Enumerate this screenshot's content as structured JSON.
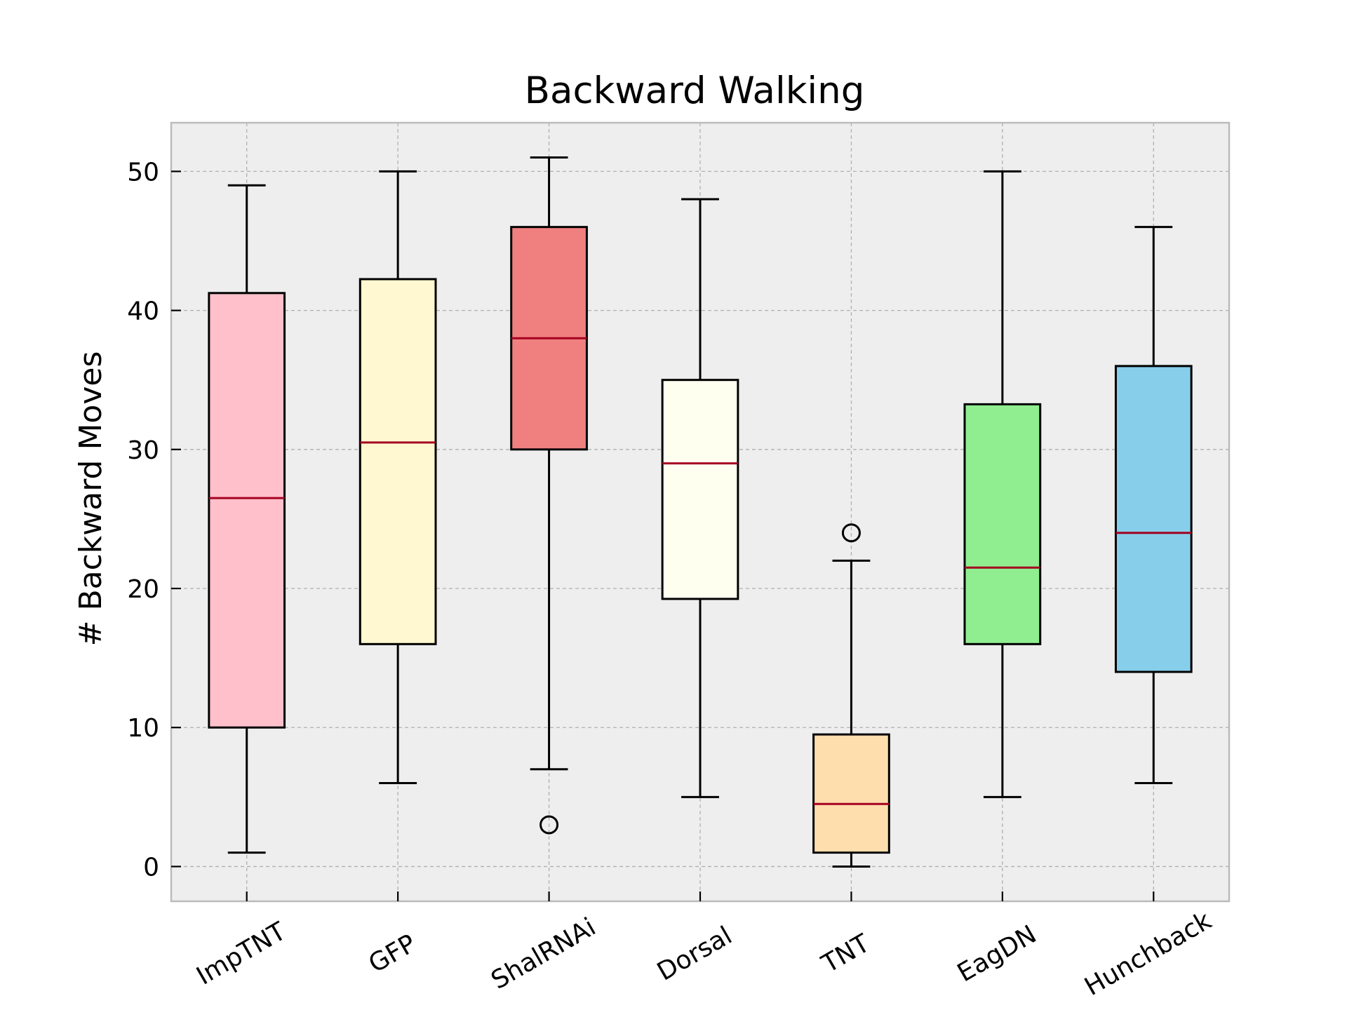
{
  "chart_data": {
    "type": "box",
    "title": "Backward Walking",
    "xlabel": "",
    "ylabel": "# Backward Moves",
    "ylim": [
      -2.5,
      53.5
    ],
    "yticks": [
      "0",
      "10",
      "20",
      "30",
      "40",
      "50"
    ],
    "grid": true,
    "categories": [
      "ImpTNT",
      "GFP",
      "ShalRNAi",
      "Dorsal",
      "TNT",
      "EagDN",
      "Hunchback"
    ],
    "boxes": [
      {
        "name": "ImpTNT",
        "color": "#FFC0CB",
        "whisker_low": 1,
        "q1": 10,
        "median": 26.5,
        "q3": 41.25,
        "whisker_high": 49,
        "outliers": []
      },
      {
        "name": "GFP",
        "color": "#FFF8D0",
        "whisker_low": 6,
        "q1": 16,
        "median": 30.5,
        "q3": 42.25,
        "whisker_high": 50,
        "outliers": []
      },
      {
        "name": "ShalRNAi",
        "color": "#F08080",
        "whisker_low": 7,
        "q1": 30,
        "median": 38,
        "q3": 46,
        "whisker_high": 51,
        "outliers": [
          3
        ]
      },
      {
        "name": "Dorsal",
        "color": "#FFFFF0",
        "whisker_low": 5,
        "q1": 19.25,
        "median": 29,
        "q3": 35,
        "whisker_high": 48,
        "outliers": []
      },
      {
        "name": "TNT",
        "color": "#FFDEAD",
        "whisker_low": 0,
        "q1": 1,
        "median": 4.5,
        "q3": 9.5,
        "whisker_high": 22,
        "outliers": [
          24
        ]
      },
      {
        "name": "EagDN",
        "color": "#90EE90",
        "whisker_low": 5,
        "q1": 16,
        "median": 21.5,
        "q3": 33.25,
        "whisker_high": 50,
        "outliers": []
      },
      {
        "name": "Hunchback",
        "color": "#87CEEB",
        "whisker_low": 6,
        "q1": 14,
        "median": 24,
        "q3": 36,
        "whisker_high": 46,
        "outliers": []
      }
    ],
    "colors": {
      "plot_background": "#EEEEEE",
      "frame": "#BBBBBB",
      "grid": "#B0B0B0",
      "median": "#A50021",
      "box_edge": "#000000"
    }
  }
}
